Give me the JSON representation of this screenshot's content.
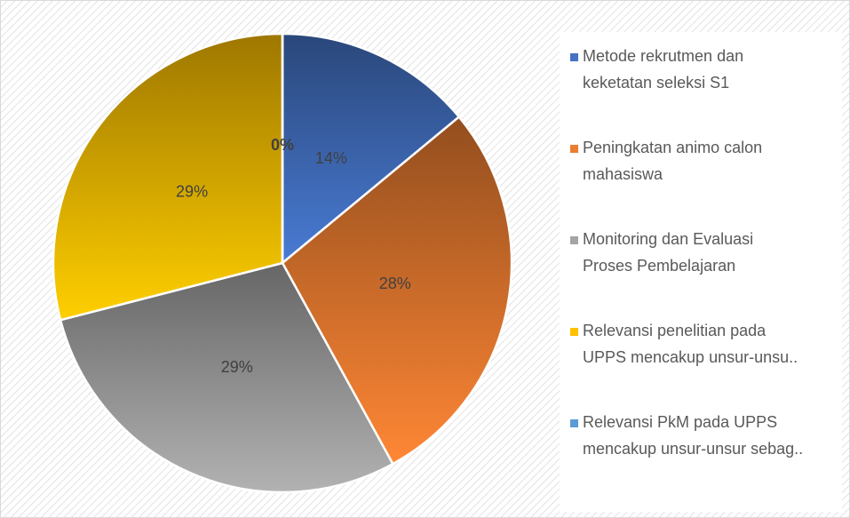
{
  "chart_data": {
    "type": "pie",
    "categories": [
      "Metode rekrutmen dan keketatan seleksi S1",
      "Peningkatan animo calon mahasiswa",
      "Monitoring dan Evaluasi Proses Pembelajaran",
      "Relevansi penelitian pada UPPS mencakup unsur-unsu..",
      "Relevansi PkM pada UPPS mencakup unsur-unsur sebag.."
    ],
    "values": [
      14,
      28,
      29,
      29,
      0
    ],
    "value_labels": [
      "14%",
      "28%",
      "29%",
      "29%",
      "0%"
    ],
    "colors": [
      "#4472c4",
      "#ed7d31",
      "#a5a5a5",
      "#ffc000",
      "#5b9bd5"
    ],
    "legend": "right"
  }
}
